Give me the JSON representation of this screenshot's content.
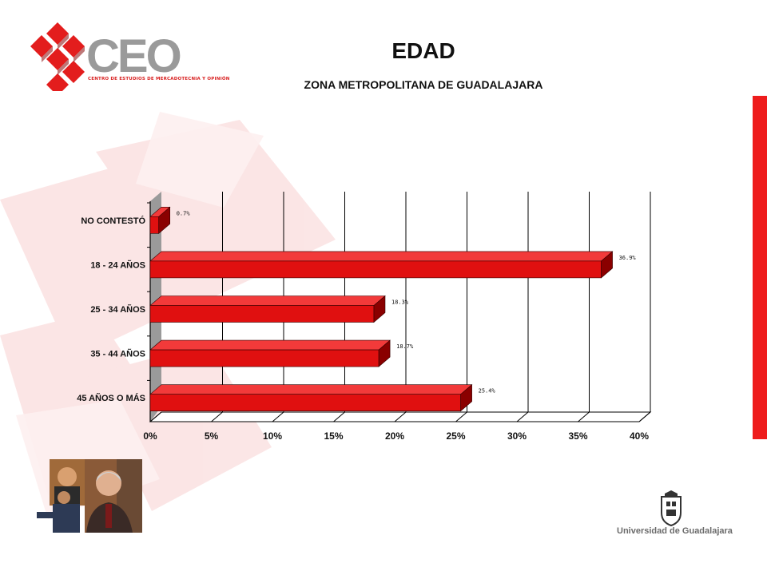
{
  "header": {
    "title": "EDAD",
    "subtitle": "ZONA METROPOLITANA DE GUADALAJARA"
  },
  "logo": {
    "name": "CEO",
    "tagline": "CENTRO DE ESTUDIOS DE MERCADOTECNIA Y OPINIÓN"
  },
  "footer": {
    "university": "Universidad de Guadalajara"
  },
  "colors": {
    "accent": "#ee1c1c",
    "bar_front": "#e01010",
    "bar_side": "#8a0000",
    "bar_top": "#f23a3a",
    "wall": "#9a9a9a"
  },
  "chart_data": {
    "type": "bar",
    "orientation": "horizontal",
    "categories": [
      "NO CONTESTÓ",
      "18 - 24 AÑOS",
      "25 - 34 AÑOS",
      "35 - 44 AÑOS",
      "45 AÑOS O MÁS"
    ],
    "values": [
      0.7,
      36.9,
      18.3,
      18.7,
      25.4
    ],
    "data_labels": [
      "0.7%",
      "36.9%",
      "18.3%",
      "18.7%",
      "25.4%"
    ],
    "x_ticks": [
      "0%",
      "5%",
      "10%",
      "15%",
      "20%",
      "25%",
      "30%",
      "35%",
      "40%"
    ],
    "xlim": [
      0,
      40
    ],
    "grid": true,
    "legend": "none"
  }
}
